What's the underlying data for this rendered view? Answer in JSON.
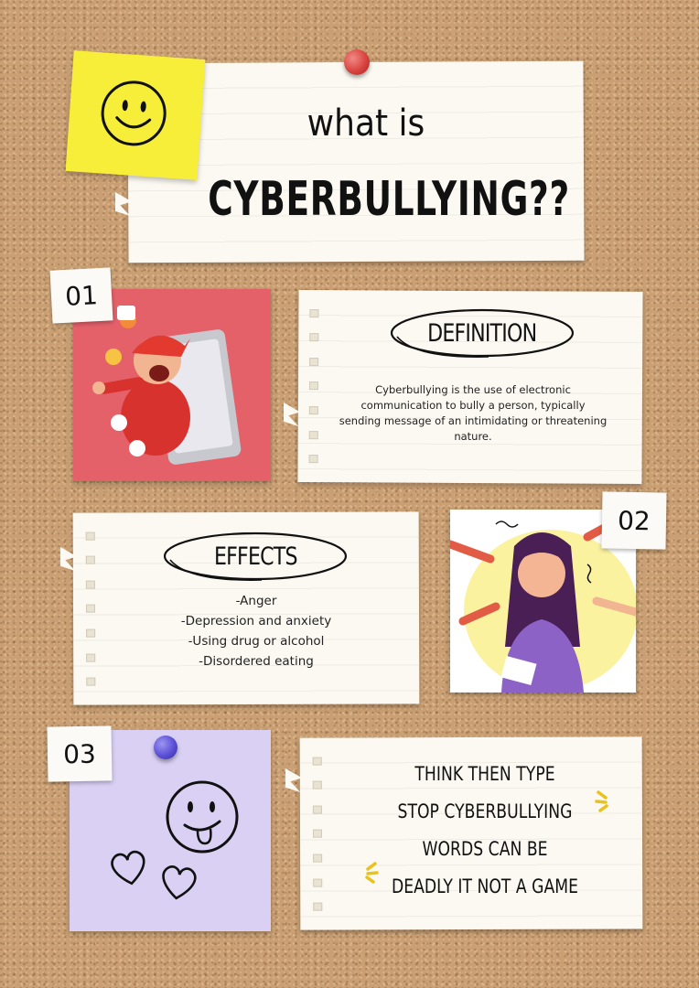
{
  "header": {
    "line1": "what is",
    "line2": "CYBERBULLYING??"
  },
  "section1": {
    "number": "01",
    "title": "DEFINITION",
    "text": "Cyberbullying is the use of electronic communication to bully a person, typically sending message of an intimidating or threatening nature."
  },
  "section2": {
    "number": "02",
    "title": "EFFECTS",
    "items": [
      "-Anger",
      "-Depression and anxiety",
      "-Using drug or alcohol",
      "-Disordered eating"
    ]
  },
  "section3": {
    "number": "03",
    "lines": [
      "THINK THEN TYPE",
      "STOP CYBERBULLYING",
      "WORDS CAN BE",
      "DEADLY IT NOT A GAME"
    ]
  },
  "colors": {
    "cork": "#c99f73",
    "sticky_yellow": "#f7ee3a",
    "sticky_purple": "#d9d0f4",
    "pin_red": "#d9433f",
    "pin_blue": "#5b4fd6"
  }
}
